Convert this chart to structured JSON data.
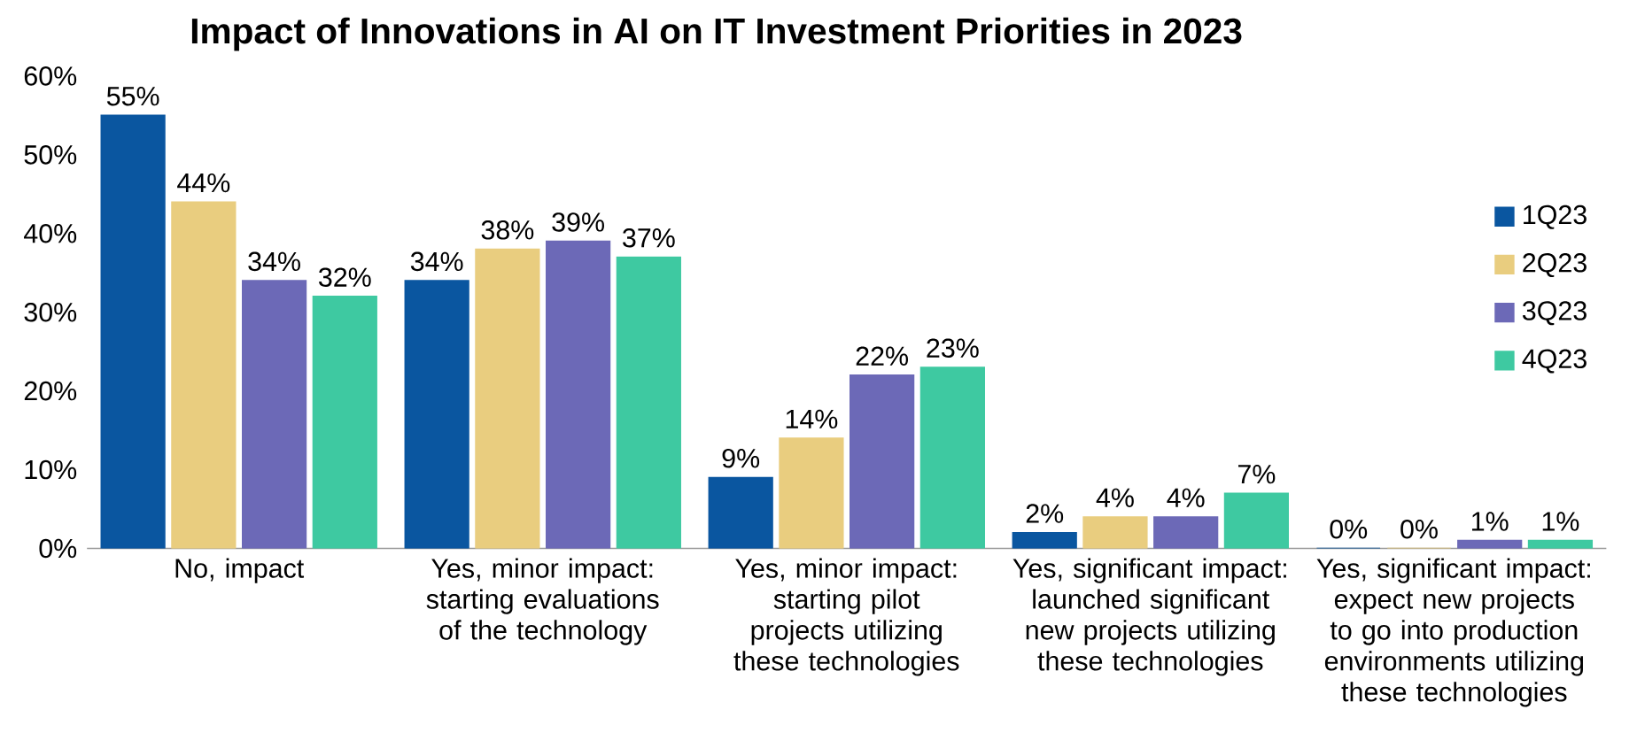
{
  "chart_data": {
    "type": "bar",
    "title": "Impact of Innovations in AI on IT Investment Priorities in 2023",
    "categories": [
      "No, impact",
      "Yes, minor impact: starting evaluations of the technology",
      "Yes, minor impact: starting pilot projects utilizing these technologies",
      "Yes, significant impact: launched significant new projects utilizing these technologies",
      "Yes, significant impact: expect new projects to go into production environments utilizing these technologies"
    ],
    "series": [
      {
        "name": "1Q23",
        "color": "#0a56a0",
        "values": [
          55,
          34,
          9,
          2,
          0
        ],
        "value_labels": [
          "55%",
          "34%",
          "9%",
          "2%",
          "0%"
        ]
      },
      {
        "name": "2Q23",
        "color": "#e9cd7f",
        "values": [
          44,
          38,
          14,
          4,
          0
        ],
        "value_labels": [
          "44%",
          "38%",
          "14%",
          "4%",
          "0%"
        ]
      },
      {
        "name": "3Q23",
        "color": "#6c69b7",
        "values": [
          34,
          39,
          22,
          4,
          1
        ],
        "value_labels": [
          "34%",
          "39%",
          "22%",
          "4%",
          "1%"
        ]
      },
      {
        "name": "4Q23",
        "color": "#3ec9a1",
        "values": [
          32,
          37,
          23,
          7,
          1
        ],
        "value_labels": [
          "32%",
          "37%",
          "23%",
          "7%",
          "1%"
        ]
      }
    ],
    "ylim": [
      0,
      60
    ],
    "yticks": [
      {
        "value": 0,
        "label": "0%"
      },
      {
        "value": 10,
        "label": "10%"
      },
      {
        "value": 20,
        "label": "20%"
      },
      {
        "value": 30,
        "label": "30%"
      },
      {
        "value": 40,
        "label": "40%"
      },
      {
        "value": 50,
        "label": "50%"
      },
      {
        "value": 60,
        "label": "60%"
      }
    ],
    "grid": false,
    "legend": "right"
  }
}
